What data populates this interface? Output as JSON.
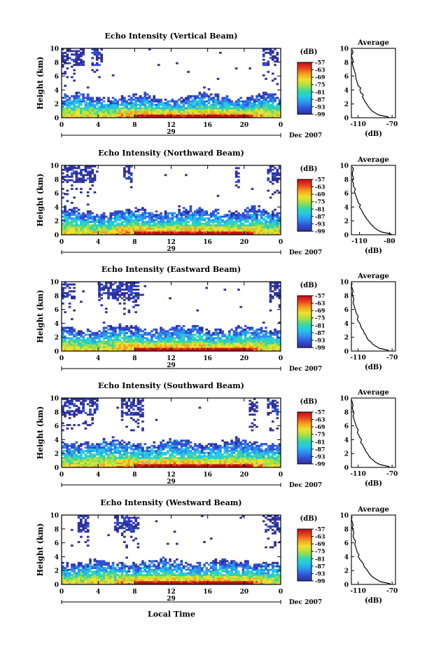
{
  "chart_data": {
    "type": "heatmap",
    "xlabel": "Local Time",
    "shared": {
      "ylabel": "Height (km)",
      "x_ticks": [
        "0",
        "4",
        "8",
        "12",
        "16",
        "20",
        "0"
      ],
      "x_range": [
        0,
        24
      ],
      "y_ticks": [
        "0",
        "2",
        "4",
        "6",
        "8",
        "10"
      ],
      "y_range": [
        0,
        10
      ],
      "date_label": "Dec 2007",
      "colorbar_title": "(dB)",
      "colorbar_range": [
        -99,
        -57
      ],
      "colorbar_ticks": [
        "-57",
        "-63",
        "-69",
        "-75",
        "-81",
        "-87",
        "-93",
        "-99"
      ],
      "colors": [
        "#30309a",
        "#3050d8",
        "#2f8ef0",
        "#22c8e8",
        "#3ad8a0",
        "#a8e040",
        "#f0e030",
        "#f4a020",
        "#e84020",
        "#c01010"
      ],
      "avg_title": "Average",
      "avg_unit": "(dB)"
    },
    "panels": [
      {
        "title": "Echo Intensity (Vertical Beam)",
        "day": "29",
        "avg_ticks": [
          "-110",
          "-70"
        ],
        "avg_range": [
          -118,
          -66
        ],
        "avg_profile": [
          [
            -74,
            0.1
          ],
          [
            -86,
            0.4
          ],
          [
            -90,
            0.7
          ],
          [
            -94,
            1.0
          ],
          [
            -96,
            1.3
          ],
          [
            -98,
            1.6
          ],
          [
            -100,
            2.0
          ],
          [
            -102,
            2.3
          ],
          [
            -103,
            2.6
          ],
          [
            -105,
            3.0
          ],
          [
            -104,
            3.3
          ],
          [
            -107,
            3.6
          ],
          [
            -108,
            4.0
          ],
          [
            -107,
            4.3
          ],
          [
            -110,
            4.6
          ],
          [
            -111,
            5.0
          ],
          [
            -112,
            5.4
          ],
          [
            -113,
            5.8
          ],
          [
            -113,
            6.2
          ],
          [
            -114,
            6.6
          ],
          [
            -115,
            7.0
          ],
          [
            -116,
            7.4
          ],
          [
            -117,
            7.8
          ],
          [
            -116,
            8.2
          ],
          [
            -117,
            8.6
          ],
          [
            -118,
            9.0
          ],
          [
            -116,
            9.4
          ],
          [
            -117,
            9.8
          ]
        ],
        "low_cloud_top_km": 3.2,
        "high_patches": [
          [
            0.0,
            2.6
          ],
          [
            3.3,
            4.4
          ],
          [
            22.0,
            23.8
          ]
        ]
      },
      {
        "title": "Echo Intensity (Northward Beam)",
        "day": "29",
        "avg_ticks": [
          "-110",
          "-80"
        ],
        "avg_range": [
          -118,
          -74
        ],
        "avg_profile": [
          [
            -78,
            0.1
          ],
          [
            -88,
            0.4
          ],
          [
            -92,
            0.7
          ],
          [
            -95,
            1.0
          ],
          [
            -97,
            1.3
          ],
          [
            -99,
            1.6
          ],
          [
            -101,
            2.0
          ],
          [
            -103,
            2.3
          ],
          [
            -104,
            2.6
          ],
          [
            -106,
            3.0
          ],
          [
            -107,
            3.3
          ],
          [
            -108,
            3.6
          ],
          [
            -110,
            4.0
          ],
          [
            -109,
            4.3
          ],
          [
            -111,
            4.6
          ],
          [
            -112,
            5.0
          ],
          [
            -113,
            5.4
          ],
          [
            -114,
            5.8
          ],
          [
            -115,
            6.2
          ],
          [
            -114,
            6.6
          ],
          [
            -116,
            7.0
          ],
          [
            -116,
            7.4
          ],
          [
            -117,
            7.8
          ],
          [
            -116,
            8.2
          ],
          [
            -117,
            8.6
          ],
          [
            -117,
            9.0
          ],
          [
            -116,
            9.4
          ],
          [
            -117,
            9.8
          ]
        ],
        "low_cloud_top_km": 3.6,
        "high_patches": [
          [
            0.0,
            3.8
          ],
          [
            6.7,
            7.8
          ],
          [
            19.0,
            19.5
          ],
          [
            22.5,
            23.9
          ]
        ]
      },
      {
        "title": "Echo Intensity (Eastward Beam)",
        "day": "29",
        "avg_ticks": [
          "-110",
          "-70"
        ],
        "avg_range": [
          -118,
          -66
        ],
        "avg_profile": [
          [
            -74,
            0.1
          ],
          [
            -85,
            0.4
          ],
          [
            -89,
            0.7
          ],
          [
            -93,
            1.0
          ],
          [
            -95,
            1.3
          ],
          [
            -98,
            1.6
          ],
          [
            -100,
            2.0
          ],
          [
            -101,
            2.3
          ],
          [
            -103,
            2.6
          ],
          [
            -104,
            3.0
          ],
          [
            -106,
            3.3
          ],
          [
            -107,
            3.6
          ],
          [
            -108,
            4.0
          ],
          [
            -110,
            4.3
          ],
          [
            -111,
            4.6
          ],
          [
            -110,
            5.0
          ],
          [
            -112,
            5.4
          ],
          [
            -113,
            5.8
          ],
          [
            -114,
            6.2
          ],
          [
            -115,
            6.6
          ],
          [
            -116,
            7.0
          ],
          [
            -115,
            7.4
          ],
          [
            -116,
            7.8
          ],
          [
            -117,
            8.2
          ],
          [
            -116,
            8.6
          ],
          [
            -117,
            9.0
          ],
          [
            -118,
            9.4
          ],
          [
            -117,
            9.8
          ]
        ],
        "low_cloud_top_km": 3.4,
        "high_patches": [
          [
            0.0,
            1.4
          ],
          [
            4.0,
            8.6
          ],
          [
            22.8,
            24.0
          ]
        ]
      },
      {
        "title": "Echo Intensity (Southward Beam)",
        "day": "29",
        "avg_ticks": [
          "-110",
          "-70"
        ],
        "avg_range": [
          -118,
          -66
        ],
        "avg_profile": [
          [
            -73,
            0.1
          ],
          [
            -84,
            0.4
          ],
          [
            -89,
            0.7
          ],
          [
            -92,
            1.0
          ],
          [
            -95,
            1.3
          ],
          [
            -97,
            1.6
          ],
          [
            -99,
            2.0
          ],
          [
            -101,
            2.3
          ],
          [
            -102,
            2.6
          ],
          [
            -104,
            3.0
          ],
          [
            -105,
            3.3
          ],
          [
            -107,
            3.6
          ],
          [
            -106,
            4.0
          ],
          [
            -108,
            4.3
          ],
          [
            -109,
            4.6
          ],
          [
            -111,
            5.0
          ],
          [
            -110,
            5.4
          ],
          [
            -112,
            5.8
          ],
          [
            -113,
            6.2
          ],
          [
            -114,
            6.6
          ],
          [
            -115,
            7.0
          ],
          [
            -116,
            7.4
          ],
          [
            -115,
            7.8
          ],
          [
            -116,
            8.2
          ],
          [
            -117,
            8.6
          ],
          [
            -116,
            9.0
          ],
          [
            -117,
            9.4
          ],
          [
            -118,
            9.8
          ]
        ],
        "low_cloud_top_km": 3.8,
        "high_patches": [
          [
            0.0,
            4.0
          ],
          [
            6.4,
            9.0
          ],
          [
            20.6,
            21.4
          ],
          [
            22.6,
            23.8
          ]
        ]
      },
      {
        "title": "Echo Intensity (Westward Beam)",
        "day": "29",
        "avg_ticks": [
          "-110",
          "-70"
        ],
        "avg_range": [
          -118,
          -66
        ],
        "avg_profile": [
          [
            -72,
            0.1
          ],
          [
            -84,
            0.4
          ],
          [
            -88,
            0.7
          ],
          [
            -92,
            1.0
          ],
          [
            -95,
            1.3
          ],
          [
            -97,
            1.6
          ],
          [
            -99,
            2.0
          ],
          [
            -101,
            2.3
          ],
          [
            -103,
            2.6
          ],
          [
            -104,
            3.0
          ],
          [
            -106,
            3.3
          ],
          [
            -108,
            3.6
          ],
          [
            -110,
            4.0
          ],
          [
            -109,
            4.3
          ],
          [
            -111,
            4.6
          ],
          [
            -112,
            5.0
          ],
          [
            -113,
            5.4
          ],
          [
            -114,
            5.8
          ],
          [
            -113,
            6.2
          ],
          [
            -115,
            6.6
          ],
          [
            -116,
            7.0
          ],
          [
            -115,
            7.4
          ],
          [
            -116,
            7.8
          ],
          [
            -117,
            8.2
          ],
          [
            -116,
            8.6
          ],
          [
            -117,
            9.0
          ],
          [
            -118,
            9.4
          ],
          [
            -117,
            9.8
          ]
        ],
        "low_cloud_top_km": 3.4,
        "high_patches": [
          [
            1.8,
            3.0
          ],
          [
            5.8,
            8.4
          ],
          [
            22.0,
            23.9
          ]
        ]
      }
    ]
  }
}
